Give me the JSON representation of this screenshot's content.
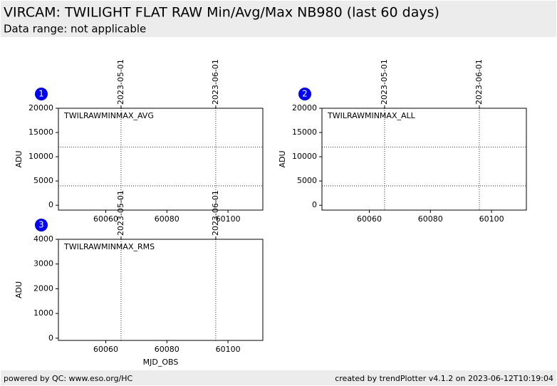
{
  "header": {
    "title": "VIRCAM: TWILIGHT FLAT RAW Min/Avg/Max NB980 (last 60 days)",
    "subtitle": "Data range: not applicable"
  },
  "footer": {
    "left": "powered by QC: www.eso.org/HC",
    "right": "created by trendPlotter v4.1.2 on 2023-06-12T10:19:04"
  },
  "chart_data": [
    {
      "type": "scatter",
      "badge": "1",
      "label": "TWILRAWMINMAX_AVG",
      "ylabel": "ADU",
      "x": [],
      "values": [],
      "xlim": [
        60044.5,
        60111.4
      ],
      "xticks": [
        60060,
        60080,
        60100
      ],
      "ylim": [
        -1000,
        20000
      ],
      "yticks": [
        0,
        5000,
        10000,
        15000,
        20000
      ],
      "reference_lines": [
        12000,
        4000
      ],
      "date_lines": [
        60065,
        60096
      ],
      "date_labels": [
        "2023-05-01",
        "2023-06-01"
      ]
    },
    {
      "type": "scatter",
      "badge": "2",
      "label": "TWILRAWMINMAX_ALL",
      "ylabel": "ADU",
      "x": [],
      "values": [],
      "xlim": [
        60044.5,
        60111.4
      ],
      "xticks": [
        60060,
        60080,
        60100
      ],
      "ylim": [
        -1000,
        20000
      ],
      "yticks": [
        0,
        5000,
        10000,
        15000,
        20000
      ],
      "reference_lines": [
        12000,
        4000
      ],
      "date_lines": [
        60065,
        60096
      ],
      "date_labels": [
        "2023-05-01",
        "2023-06-01"
      ]
    },
    {
      "type": "scatter",
      "badge": "3",
      "label": "TWILRAWMINMAX_RMS",
      "ylabel": "ADU",
      "xlabel": "MJD_OBS",
      "x": [],
      "values": [],
      "xlim": [
        60044.5,
        60111.4
      ],
      "xticks": [
        60060,
        60080,
        60100
      ],
      "ylim": [
        -90,
        4000
      ],
      "yticks": [
        0,
        1000,
        2000,
        3000,
        4000
      ],
      "reference_lines": [],
      "date_lines": [
        60065,
        60096
      ],
      "date_labels": [
        "2023-05-01",
        "2023-06-01"
      ]
    }
  ]
}
